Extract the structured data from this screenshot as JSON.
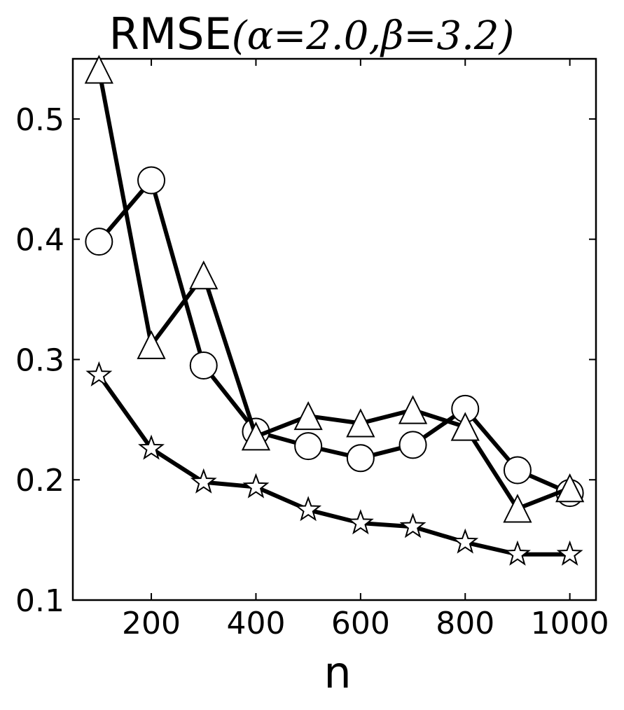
{
  "chart_data": {
    "type": "line",
    "title": "RMSE",
    "title_params": "(α=2.0,β=3.2)",
    "xlabel": "n",
    "ylabel": "",
    "xlim": [
      50,
      1050
    ],
    "ylim": [
      0.1,
      0.55
    ],
    "xticks": [
      200,
      400,
      600,
      800,
      1000
    ],
    "yticks": [
      0.1,
      0.2,
      0.3,
      0.4,
      0.5
    ],
    "x": [
      100,
      200,
      300,
      400,
      500,
      600,
      700,
      800,
      900,
      1000
    ],
    "series": [
      {
        "marker": "circle",
        "values": [
          0.398,
          0.449,
          0.295,
          0.24,
          0.228,
          0.218,
          0.229,
          0.259,
          0.208,
          0.189
        ]
      },
      {
        "marker": "triangle",
        "values": [
          0.541,
          0.312,
          0.37,
          0.236,
          0.253,
          0.247,
          0.258,
          0.244,
          0.176,
          0.193
        ]
      },
      {
        "marker": "star",
        "values": [
          0.287,
          0.226,
          0.198,
          0.194,
          0.175,
          0.164,
          0.161,
          0.148,
          0.138,
          0.138
        ]
      }
    ],
    "grid": false,
    "line_color": "#000000",
    "marker_fill": "#ffffff"
  }
}
